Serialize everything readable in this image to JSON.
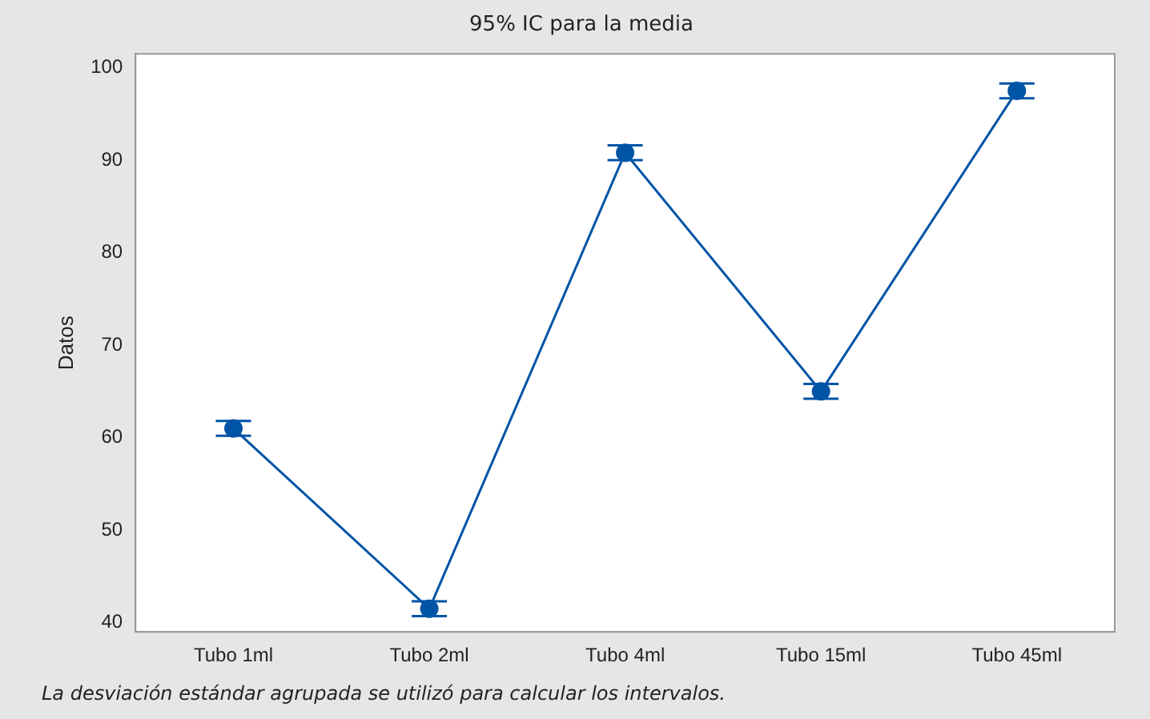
{
  "chart_data": {
    "type": "line",
    "title": "95% IC para la media",
    "ylabel": "Datos",
    "categories": [
      "Tubo 1ml",
      "Tubo 2ml",
      "Tubo 4ml",
      "Tubo 15ml",
      "Tubo 45ml"
    ],
    "series": [
      {
        "color": "#0054a6",
        "values": [
          61.0,
          41.5,
          90.8,
          65.0,
          97.5
        ],
        "errors": [
          0.8,
          0.8,
          0.8,
          0.8,
          0.8
        ]
      }
    ],
    "ylim": [
      39,
      101.5
    ],
    "yticks": [
      40,
      50,
      60,
      70,
      80,
      90,
      100
    ],
    "grid": false,
    "legend": false,
    "marker": "circle",
    "line_style": "solid",
    "annotations": [
      "La desviación estándar agrupada se utilizó para calcular los intervalos."
    ]
  }
}
